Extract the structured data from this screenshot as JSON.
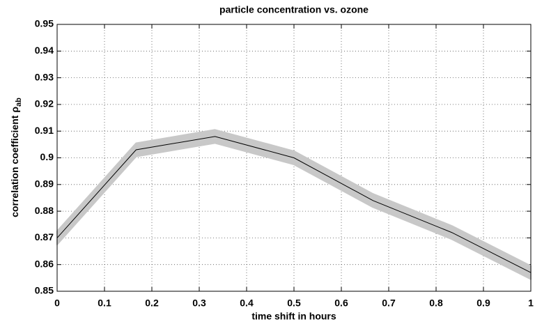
{
  "chart_data": {
    "type": "line",
    "title": "particle concentration vs. ozone",
    "xlabel": "time shift in hours",
    "ylabel": "correlation coefficient ρ",
    "ylabel_subscript": "ab",
    "x": [
      0,
      0.1667,
      0.3333,
      0.5,
      0.6667,
      0.8333,
      1
    ],
    "series": [
      {
        "color": "#000000",
        "band_color": "#c8c8c8",
        "values": [
          0.87,
          0.903,
          0.908,
          0.9,
          0.884,
          0.872,
          0.857
        ],
        "errors": [
          0.0025,
          0.0025,
          0.0025,
          0.0025,
          0.0025,
          0.0025,
          0.0025
        ]
      }
    ],
    "xlim": [
      0,
      1
    ],
    "xticks": [
      0,
      0.1,
      0.2,
      0.3,
      0.4,
      0.5,
      0.6,
      0.7,
      0.8,
      0.9,
      1
    ],
    "ylim": [
      0.85,
      0.95
    ],
    "yticks": [
      0.85,
      0.86,
      0.87,
      0.88,
      0.89,
      0.9,
      0.91,
      0.92,
      0.93,
      0.94,
      0.95
    ],
    "grid": true
  }
}
